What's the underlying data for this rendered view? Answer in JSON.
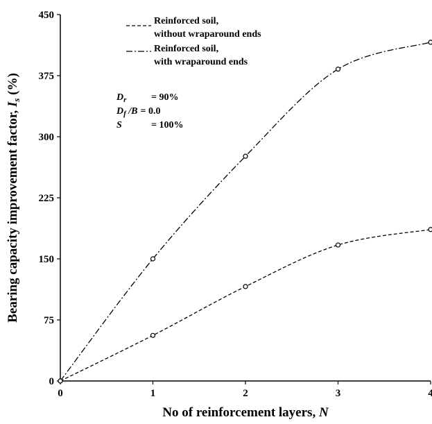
{
  "chart_data": {
    "type": "line",
    "title": "",
    "xlabel": "No of reinforcement layers, ",
    "xlabel_var": "N",
    "ylabel": "Bearing capacity improvement factor, ",
    "ylabel_var": "I",
    "ylabel_sub": "s",
    "ylabel_unit": " (%)",
    "xlim": [
      0,
      4
    ],
    "ylim": [
      0,
      450
    ],
    "x_ticks": [
      0,
      1,
      2,
      3,
      4
    ],
    "y_ticks": [
      0,
      75,
      150,
      225,
      300,
      375,
      450
    ],
    "grid": false,
    "legend_position": "top-left",
    "series": [
      {
        "name_line1": "Reinforced soil,",
        "name_line2": "without wraparound ends",
        "dash": "dashed",
        "x": [
          0,
          1,
          2,
          3,
          4
        ],
        "y": [
          0,
          56,
          116,
          167,
          186
        ]
      },
      {
        "name_line1": "Reinforced soil,",
        "name_line2": "with wraparound ends",
        "dash": "dash-dot",
        "x": [
          0,
          1,
          2,
          3,
          4
        ],
        "y": [
          0,
          150,
          276,
          383,
          416
        ]
      }
    ],
    "parameters": [
      {
        "sym": "D",
        "sub": "r",
        "rest": "",
        "eq": "= 90%"
      },
      {
        "sym": "D",
        "sub": "f",
        "rest": " /B",
        "eq": "= 0.0"
      },
      {
        "sym": "S",
        "sub": "",
        "rest": "",
        "eq": "= 100%"
      }
    ]
  }
}
